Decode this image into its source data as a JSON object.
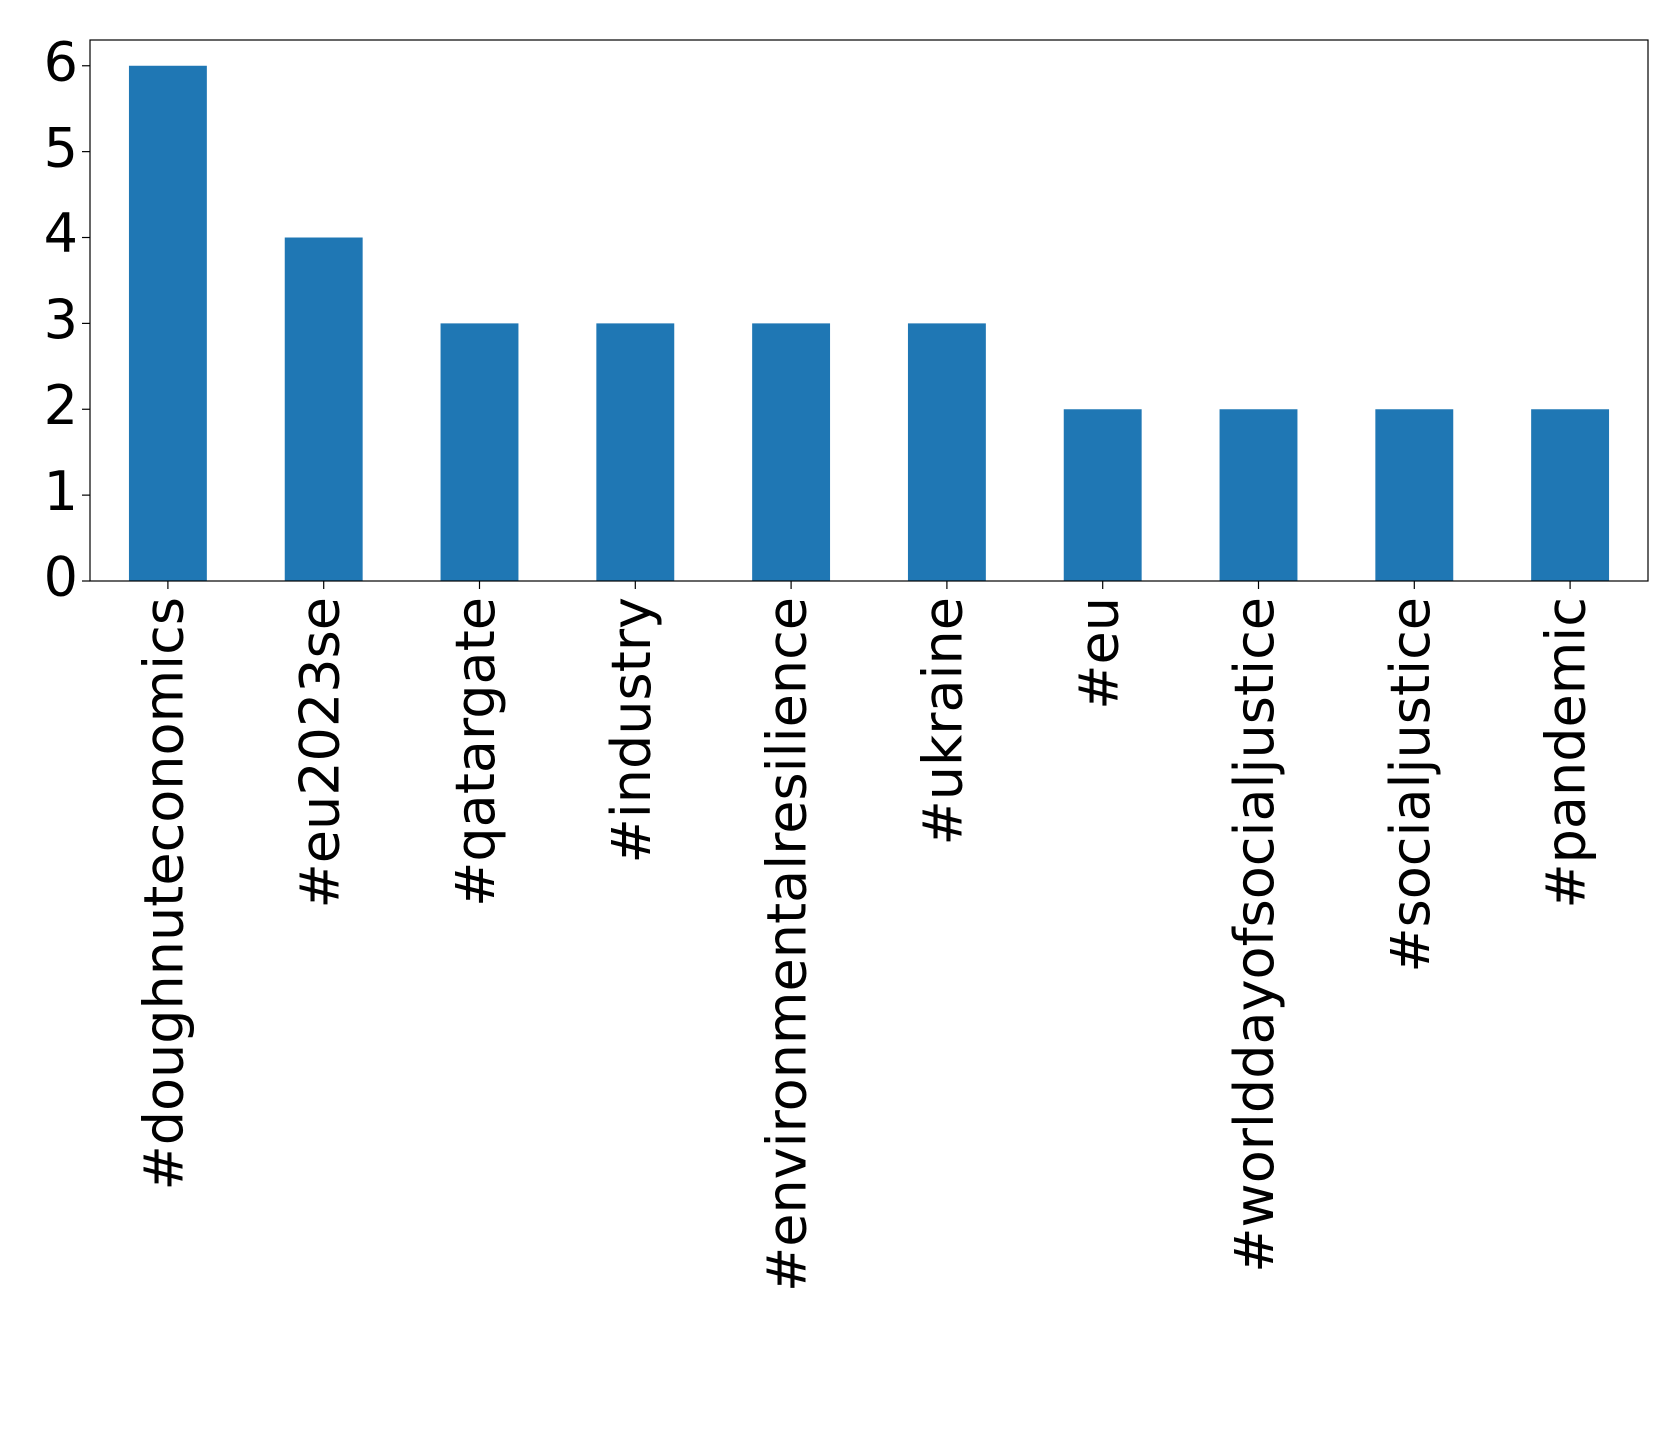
{
  "chart_data": {
    "type": "bar",
    "categories": [
      "#doughnuteconomics",
      "#eu2023se",
      "#qatargate",
      "#industry",
      "#environmentalresilience",
      "#ukraine",
      "#eu",
      "#worlddayofsocialjustice",
      "#socialjustice",
      "#pandemic"
    ],
    "values": [
      6,
      4,
      3,
      3,
      3,
      3,
      2,
      2,
      2,
      2
    ],
    "color": "#1f77b4",
    "ylim": [
      0,
      6.3
    ],
    "yticks": [
      0,
      1,
      2,
      3,
      4,
      5,
      6
    ],
    "grid": false
  }
}
